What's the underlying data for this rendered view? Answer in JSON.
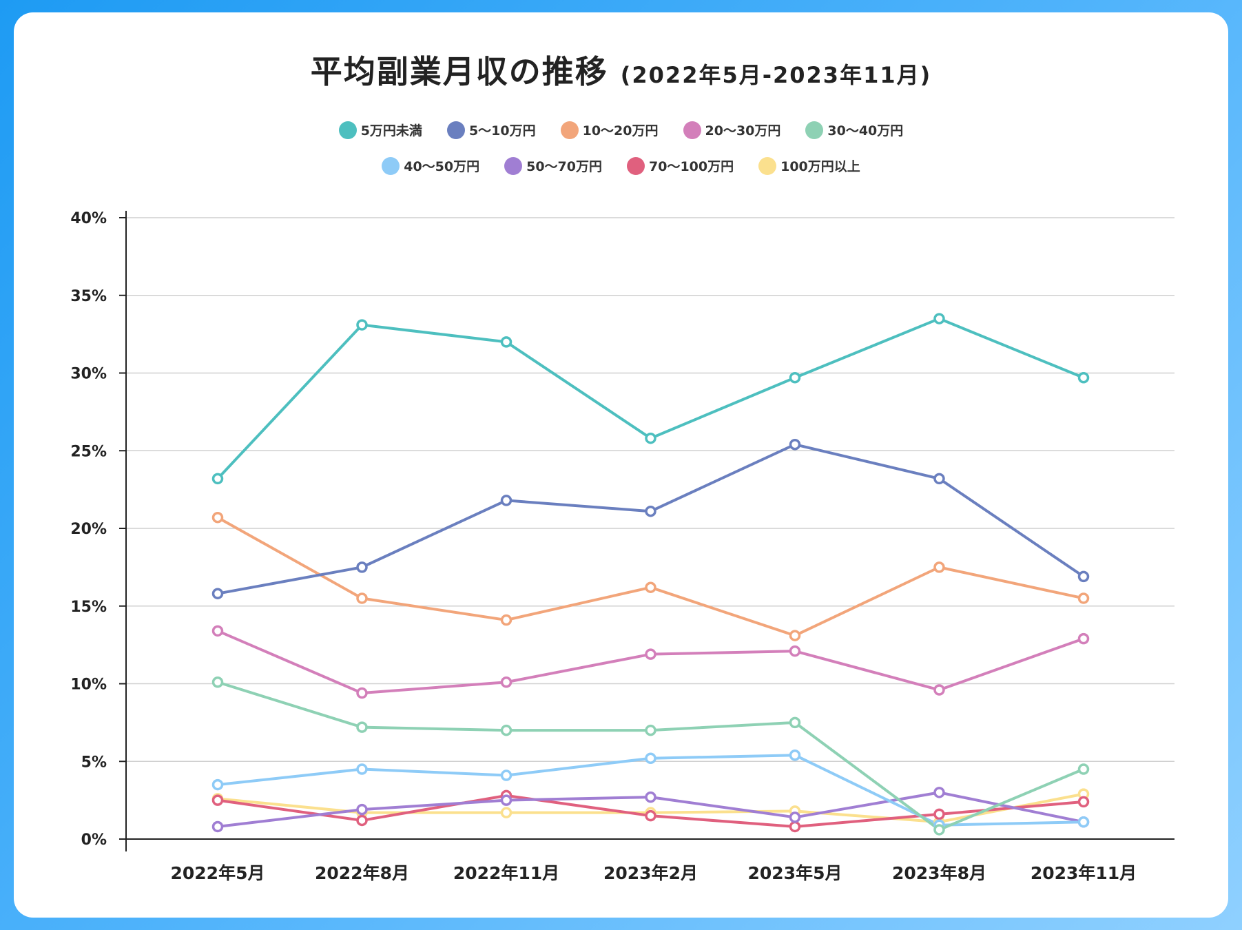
{
  "chart_data": {
    "type": "line",
    "title": "平均副業月収の推移",
    "subtitle": "(2022年5月-2023年11月)",
    "categories": [
      "2022年5月",
      "2022年8月",
      "2022年11月",
      "2023年2月",
      "2023年5月",
      "2023年8月",
      "2023年11月"
    ],
    "yticks": [
      "0%",
      "5%",
      "10%",
      "15%",
      "20%",
      "25%",
      "30%",
      "35%",
      "40%"
    ],
    "ylim": [
      0,
      40
    ],
    "grid": true,
    "legend_position": "top",
    "series": [
      {
        "name": "5万円未満",
        "color": "#4dbfbf",
        "values": [
          23.2,
          33.1,
          32.0,
          25.8,
          29.7,
          33.5,
          29.7
        ]
      },
      {
        "name": "5〜10万円",
        "color": "#6a7fbf",
        "values": [
          15.8,
          17.5,
          21.8,
          21.1,
          25.4,
          23.2,
          16.9
        ]
      },
      {
        "name": "10〜20万円",
        "color": "#f2a57a",
        "values": [
          20.7,
          15.5,
          14.1,
          16.2,
          13.1,
          17.5,
          15.5
        ]
      },
      {
        "name": "20〜30万円",
        "color": "#d37fba",
        "values": [
          13.4,
          9.4,
          10.1,
          11.9,
          12.1,
          9.6,
          12.9
        ]
      },
      {
        "name": "30〜40万円",
        "color": "#8ed1b4",
        "values": [
          10.1,
          7.2,
          7.0,
          7.0,
          7.5,
          0.6,
          4.5
        ]
      },
      {
        "name": "40〜50万円",
        "color": "#8ecbf7",
        "values": [
          3.5,
          4.5,
          4.1,
          5.2,
          5.4,
          0.9,
          1.1
        ]
      },
      {
        "name": "50〜70万円",
        "color": "#a07ed3",
        "values": [
          0.8,
          1.9,
          2.5,
          2.7,
          1.4,
          3.0,
          1.1
        ]
      },
      {
        "name": "70〜100万円",
        "color": "#e0607e",
        "values": [
          2.5,
          1.2,
          2.8,
          1.5,
          0.8,
          1.6,
          2.4
        ]
      },
      {
        "name": "100万円以上",
        "color": "#fbe08e",
        "values": [
          2.6,
          1.7,
          1.7,
          1.7,
          1.8,
          1.1,
          2.9
        ]
      }
    ]
  }
}
